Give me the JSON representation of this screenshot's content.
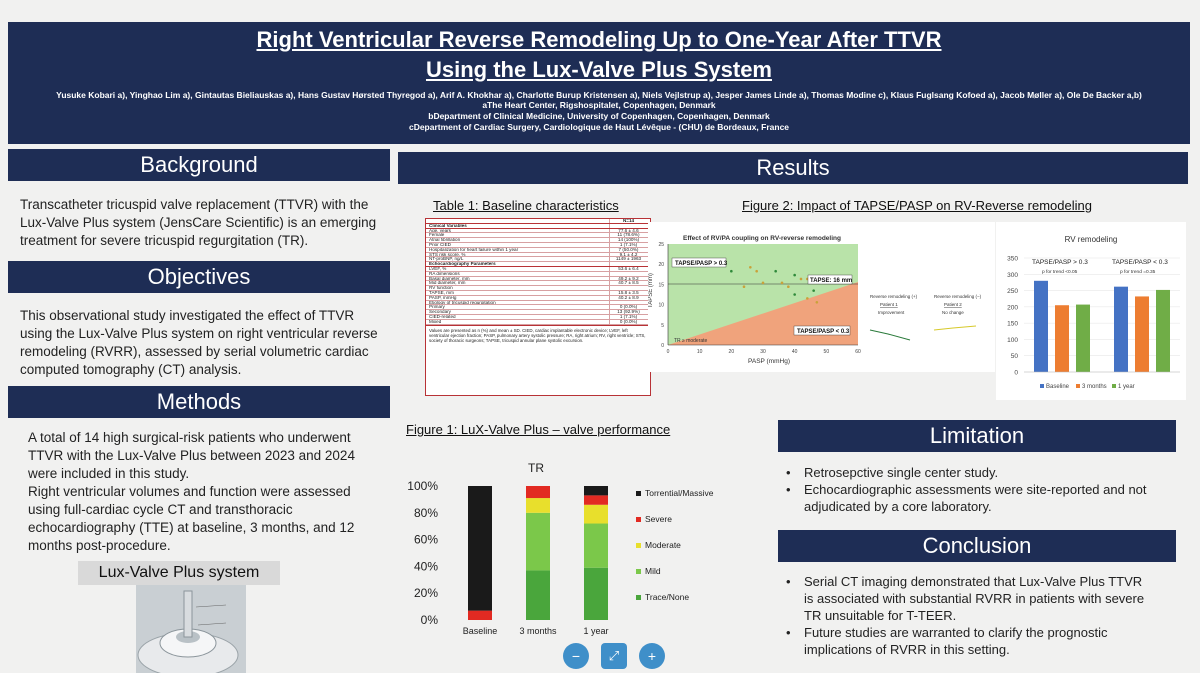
{
  "header": {
    "title_line1": "Right Ventricular Reverse Remodeling Up to One-Year After TTVR",
    "title_line2": "Using the Lux-Valve Plus System",
    "authors": "Yusuke Kobari a), Yinghao Lim a), Gintautas Bieliauskas a), Hans Gustav Hørsted Thyregod a), Arif A. Khokhar a), Charlotte Burup Kristensen a), Niels Vejlstrup a), Jesper James Linde a), Thomas Modine c), Klaus Fuglsang Kofoed a), Jacob Møller a), Ole De Backer a,b)",
    "affil_a": "aThe Heart Center, Rigshospitalet, Copenhagen, Denmark",
    "affil_b": "bDepartment of Clinical Medicine, University of Copenhagen, Copenhagen, Denmark",
    "affil_c": "cDepartment of Cardiac Surgery, Cardiologique de Haut Lévêque - (CHU) de Bordeaux, France"
  },
  "background": {
    "heading": "Background",
    "text": "Transcatheter tricuspid valve replacement (TTVR) with the Lux-Valve Plus system (JensCare Scientific) is an emerging treatment for severe tricuspid regurgitation (TR)."
  },
  "objectives": {
    "heading": "Objectives",
    "text": "This observational study investigated the effect of TTVR using the Lux-Valve Plus system on right ventricular reverse remodeling (RVRR), assessed by serial volumetric cardiac computed tomography (CT) analysis."
  },
  "methods": {
    "heading": "Methods",
    "text1": "A total of 14 high surgical-risk patients who underwent TTVR with the Lux-Valve Plus between 2023 and 2024 were included in this study.",
    "text2": "Right ventricular volumes and function were assessed using full-cardiac cycle CT and transthoracic echocardiography (TTE) at baseline, 3 months, and 12 months post-procedure.",
    "lux_title": "Lux-Valve Plus system"
  },
  "results": {
    "heading": "Results",
    "table_title": "Table 1: Baseline characteristics",
    "fig2_title": "Figure 2: Impact of TAPSE/PASP on RV-Reverse remodeling",
    "fig1_title": "Figure 1: LuX-Valve Plus – valve performance"
  },
  "table1": {
    "n_header": "N=14",
    "rows": [
      {
        "label": "Clinical Variables",
        "value": "",
        "sec": true
      },
      {
        "label": "Age, years",
        "value": "77.6 ± 4.6"
      },
      {
        "label": "Female",
        "value": "11 (78.6%)"
      },
      {
        "label": "Atrial fibrillation",
        "value": "14 (100%)"
      },
      {
        "label": "Prior CIED",
        "value": "1 (7.1%)"
      },
      {
        "label": "Hospitalization for heart failure within 1 year",
        "value": "7 (50.0%)"
      },
      {
        "label": "STS risk score, %",
        "value": "9.1 ± 4.2"
      },
      {
        "label": "NT-proBNP, ng/L",
        "value": "1149 ± 1963"
      },
      {
        "label": "Echocardiography Parameters",
        "value": "",
        "sec": true
      },
      {
        "label": "LVEF, %",
        "value": "53.6 ± 6.4"
      },
      {
        "label": "RA dimensions",
        "value": ""
      },
      {
        "label": "Basal diameter, mm",
        "value": "49.2 ± 9.2"
      },
      {
        "label": "Mid diameter, mm",
        "value": "40.7 ± 8.5"
      },
      {
        "label": "RV function",
        "value": ""
      },
      {
        "label": "TAPSE, mm",
        "value": "15.8 ± 3.5"
      },
      {
        "label": "PASP, mmHg",
        "value": "40.2 ± 8.9"
      },
      {
        "label": "Etiology of tricuspid regurgitation",
        "value": ""
      },
      {
        "label": "Primary",
        "value": "0 (0.0%)"
      },
      {
        "label": "Secondary",
        "value": "13 (92.9%)"
      },
      {
        "label": "CIED-related",
        "value": "1 (7.1%)"
      },
      {
        "label": "Mixed",
        "value": "0 (0.0%)"
      }
    ],
    "footnote": "Values are presented as n (%) and mean ± SD. CIED, cardiac implantable electronic device; LVEF, left ventricular ejection fraction; PASP, pulmonary artery systolic pressure; RA, right atrium; RV, right ventricle; STS, society of thoracic surgeons; TAPSE, tricuspid annular plane systolic excursion."
  },
  "fig2": {
    "scatter_title": "Effect of RV/PA coupling on RV-reverse remodeling",
    "xlabel": "PASP (mmHg)",
    "ylabel": "TAPSE (mm)",
    "label_hi": "TAPSE/PASP > 0.3",
    "label_lo": "TAPSE/PASP < 0.3",
    "label_tapse": "TAPSE: 16 mm",
    "legend": "TR ≥ moderate",
    "yticks": [
      "25",
      "20",
      "15",
      "10",
      "5",
      "0"
    ],
    "xticks": [
      "0",
      "10",
      "20",
      "30",
      "40",
      "50",
      "60"
    ],
    "mini1_title": "Reverse remodeling (+)",
    "mini1_sub": "Patient 1",
    "mini1_text": "Improvement",
    "mini2_title": "Reverse remodeling (−)",
    "mini2_sub": "Patient 2",
    "mini2_text": "No change"
  },
  "rv_chart": {
    "title": "RV remodeling",
    "group1": "TAPSE/PASP > 0.3",
    "group2": "TAPSE/PASP < 0.3",
    "trend1": "p for trend <0.05",
    "trend2": "p for trend =0.35",
    "yticks": [
      "350",
      "300",
      "250",
      "200",
      "150",
      "100",
      "50",
      "0"
    ],
    "legend": [
      "Baseline",
      "3 months",
      "1 year"
    ]
  },
  "fig1": {
    "chart_title": "TR",
    "yticks": [
      "100%",
      "80%",
      "60%",
      "40%",
      "20%",
      "0%"
    ],
    "categories": [
      "Baseline",
      "3 months",
      "1 year"
    ],
    "legend": [
      "Torrential/Massive",
      "Severe",
      "Moderate",
      "Mild",
      "Trace/None"
    ]
  },
  "chart_data": [
    {
      "type": "bar",
      "title": "TR",
      "stacked": true,
      "categories": [
        "Baseline",
        "3 months",
        "1 year"
      ],
      "ylim": [
        0,
        100
      ],
      "series": [
        {
          "name": "Trace/None",
          "color": "#4aa63c",
          "values": [
            0,
            37,
            39
          ]
        },
        {
          "name": "Mild",
          "color": "#7bc84a",
          "values": [
            0,
            43,
            33
          ]
        },
        {
          "name": "Moderate",
          "color": "#e8df2c",
          "values": [
            0,
            11,
            14
          ]
        },
        {
          "name": "Severe",
          "color": "#e22a22",
          "values": [
            7,
            9,
            7
          ]
        },
        {
          "name": "Torrential/Massive",
          "color": "#1a1a1a",
          "values": [
            93,
            0,
            7
          ]
        }
      ]
    },
    {
      "type": "bar",
      "title": "RV remodeling",
      "categories": [
        "TAPSE/PASP > 0.3",
        "TAPSE/PASP < 0.3"
      ],
      "ylim": [
        0,
        350
      ],
      "series": [
        {
          "name": "Baseline",
          "color": "#4472c4",
          "values": [
            280,
            262
          ]
        },
        {
          "name": "3 months",
          "color": "#ed7d31",
          "values": [
            205,
            232
          ]
        },
        {
          "name": "1 year",
          "color": "#70ad47",
          "values": [
            207,
            252
          ]
        }
      ]
    },
    {
      "type": "scatter",
      "title": "Effect of RV/PA coupling on RV-reverse remodeling",
      "xlabel": "PASP (mmHg)",
      "ylabel": "TAPSE (mm)",
      "xlim": [
        0,
        60
      ],
      "ylim": [
        0,
        26
      ],
      "series": [
        {
          "name": "points",
          "x": [
            20,
            26,
            28,
            34,
            36,
            38,
            40,
            42,
            44,
            46,
            24,
            30,
            40,
            44,
            47
          ],
          "y": [
            19,
            20,
            19,
            19,
            16,
            15,
            18,
            17,
            17,
            14,
            15,
            16,
            13,
            12,
            11
          ]
        }
      ]
    }
  ],
  "limitation": {
    "heading": "Limitation",
    "items": [
      "Retrosepctive single center study.",
      "Echocardiographic assessments were site-reported and not adjudicated by a core laboratory."
    ]
  },
  "conclusion": {
    "heading": "Conclusion",
    "items": [
      "Serial CT imaging demonstrated that Lux-Valve Plus TTVR is associated with substantial RVRR in patients with severe TR unsuitable for T-TEER.",
      "Future studies are warranted to clarify the prognostic implications of RVRR in this setting."
    ]
  },
  "viewer": {
    "zoom_out": "−",
    "fit": "⤢",
    "zoom_in": "+"
  }
}
